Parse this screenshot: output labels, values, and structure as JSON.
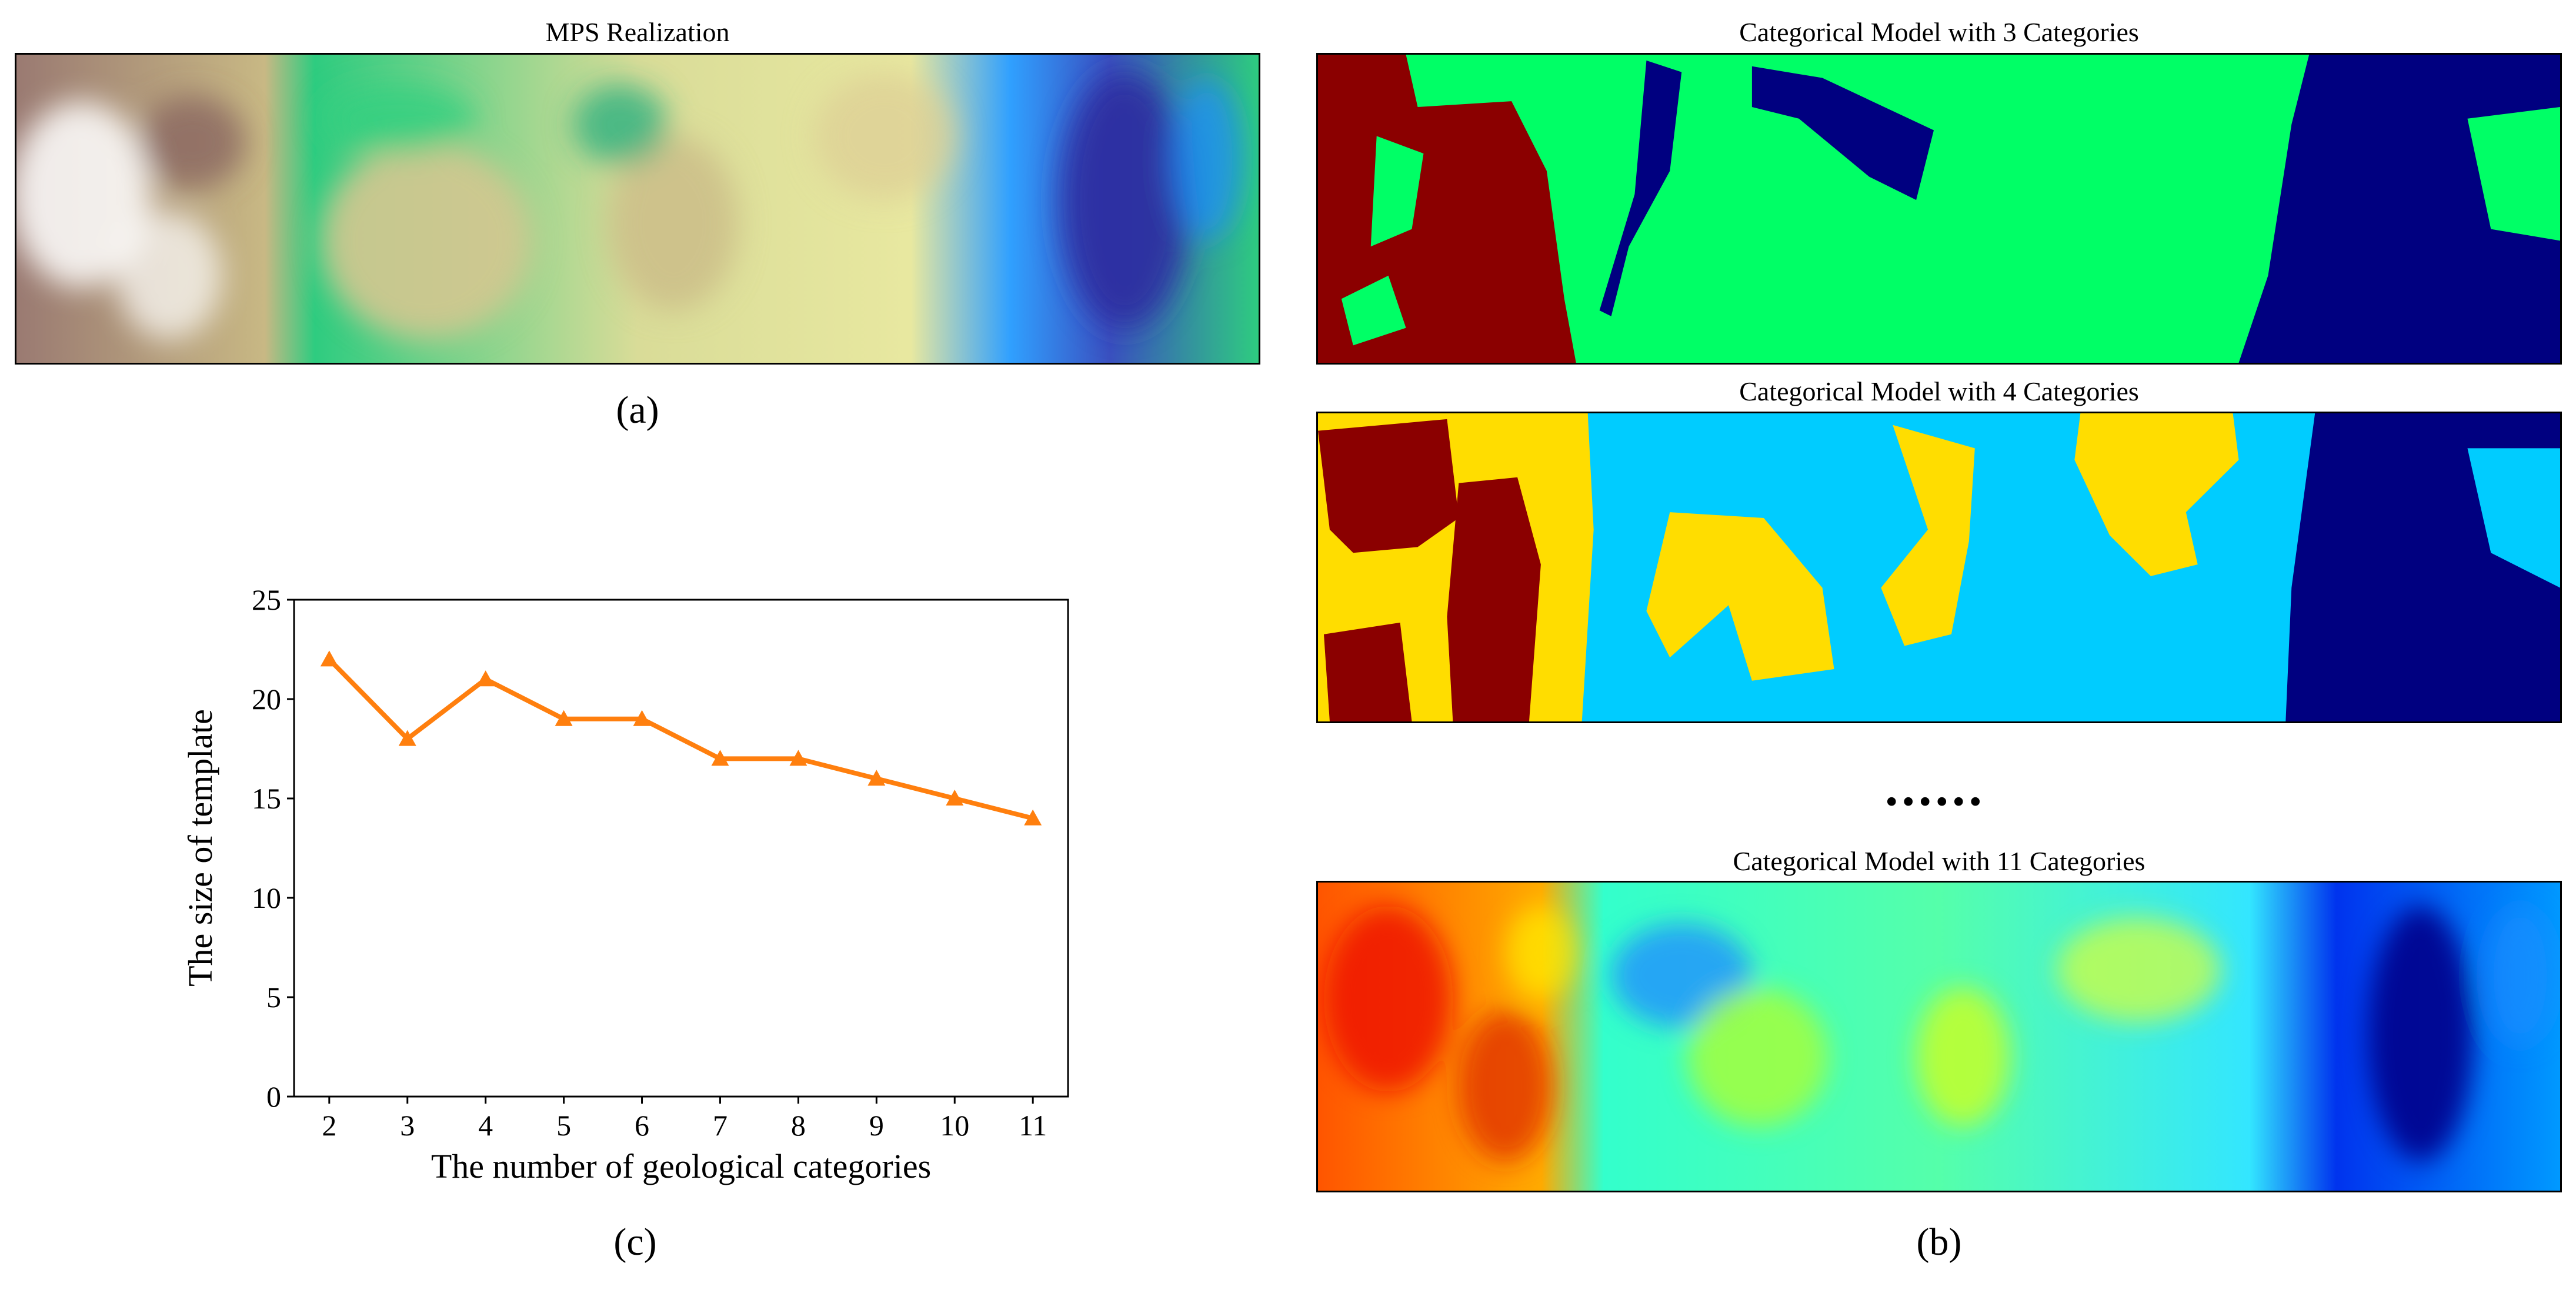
{
  "panels": {
    "mps": {
      "title": "MPS Realization",
      "caption": "(a)"
    },
    "cat3": {
      "title": "Categorical Model with 3 Categories"
    },
    "cat4": {
      "title": "Categorical Model with 4 Categories"
    },
    "ellipsis": "......",
    "cat11": {
      "title": "Categorical Model with 11 Categories"
    },
    "b_caption": "(b)",
    "c_caption": "(c)"
  },
  "chart_data": {
    "type": "line",
    "x": [
      2,
      3,
      4,
      5,
      6,
      7,
      8,
      9,
      10,
      11
    ],
    "series": [
      {
        "name": "template size",
        "values": [
          22,
          18,
          21,
          19,
          19,
          17,
          17,
          16,
          15,
          14
        ],
        "color": "#ff7f0e",
        "marker": "triangle"
      }
    ],
    "xlabel": "The number of geological categories",
    "ylabel": "The size of template",
    "xticks": [
      "2",
      "3",
      "4",
      "5",
      "6",
      "7",
      "8",
      "9",
      "10",
      "11"
    ],
    "yticks": [
      "0",
      "5",
      "10",
      "15",
      "20",
      "25"
    ],
    "ylim": [
      0,
      25
    ],
    "xlim": [
      1.55,
      11.45
    ],
    "grid": false
  }
}
